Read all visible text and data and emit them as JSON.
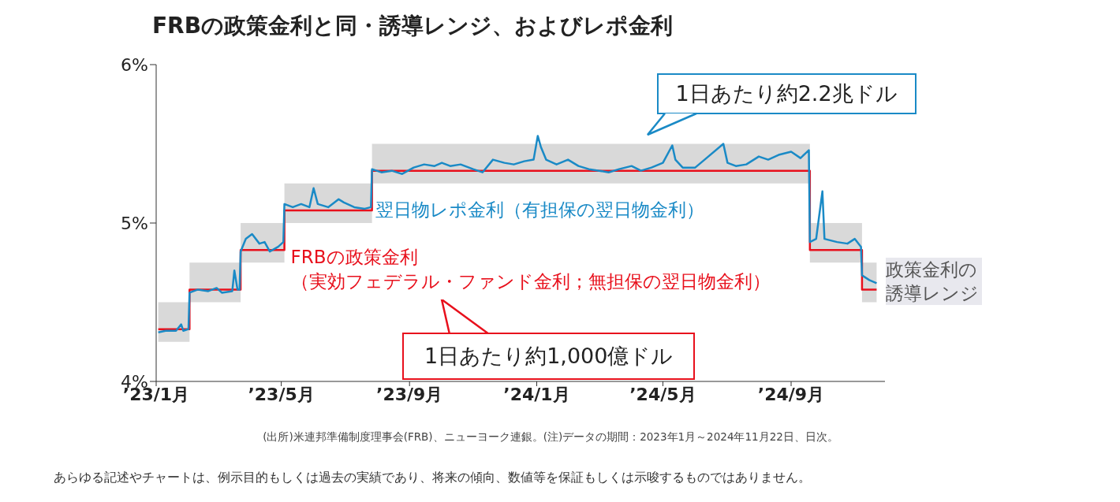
{
  "chart_data": {
    "type": "line",
    "title": "FRBの政策金利と同・誘導レンジ、およびレポ金利",
    "xlim": [
      "2023-01-01",
      "2024-11-30"
    ],
    "xticks": [
      {
        "value": "2023-01-01",
        "label": "’23/1月"
      },
      {
        "value": "2023-05-01",
        "label": "’23/5月"
      },
      {
        "value": "2023-09-01",
        "label": "’23/9月"
      },
      {
        "value": "2024-01-01",
        "label": "’24/1月"
      },
      {
        "value": "2024-05-01",
        "label": "’24/5月"
      },
      {
        "value": "2024-09-01",
        "label": "’24/9月"
      }
    ],
    "ylim": [
      4,
      6
    ],
    "yticks": [
      {
        "value": 4,
        "label": "4%"
      },
      {
        "value": 5,
        "label": "5%"
      },
      {
        "value": 6,
        "label": "6%"
      }
    ],
    "grid": false,
    "legend": false,
    "marker": "none",
    "line_style": "solid",
    "series": [
      {
        "name": "FRBの政策金利（実効フェデラル・ファンド金利；無担保の翌日物金利）",
        "type": "step",
        "color": "#e8101c",
        "x": [
          "2023-01-03",
          "2023-02-02",
          "2023-03-23",
          "2023-05-04",
          "2023-07-27",
          "2024-09-19",
          "2024-11-08",
          "2024-11-22"
        ],
        "values": [
          4.33,
          4.58,
          4.83,
          5.08,
          5.33,
          4.83,
          4.58,
          4.58
        ],
        "lower": [
          4.25,
          4.5,
          4.75,
          5.0,
          5.25,
          4.75,
          4.5,
          4.5
        ],
        "upper": [
          4.5,
          4.75,
          5.0,
          5.25,
          5.5,
          5.0,
          4.75,
          4.75
        ]
      },
      {
        "name": "翌日物レポ金利（有担保の翌日物金利）",
        "color": "#1a8ac6",
        "x": [
          "2023-01-03",
          "2023-01-10",
          "2023-01-20",
          "2023-01-25",
          "2023-01-27",
          "2023-02-01",
          "2023-02-02",
          "2023-02-10",
          "2023-02-20",
          "2023-02-28",
          "2023-03-05",
          "2023-03-15",
          "2023-03-17",
          "2023-03-20",
          "2023-03-22",
          "2023-03-23",
          "2023-03-28",
          "2023-04-03",
          "2023-04-10",
          "2023-04-15",
          "2023-04-20",
          "2023-04-28",
          "2023-05-03",
          "2023-05-04",
          "2023-05-12",
          "2023-05-20",
          "2023-05-28",
          "2023-06-01",
          "2023-06-05",
          "2023-06-15",
          "2023-06-25",
          "2023-06-30",
          "2023-07-10",
          "2023-07-20",
          "2023-07-26",
          "2023-07-27",
          "2023-08-05",
          "2023-08-15",
          "2023-08-25",
          "2023-09-05",
          "2023-09-15",
          "2023-09-25",
          "2023-10-02",
          "2023-10-10",
          "2023-10-20",
          "2023-11-01",
          "2023-11-10",
          "2023-11-20",
          "2023-12-01",
          "2023-12-10",
          "2023-12-20",
          "2023-12-29",
          "2024-01-02",
          "2024-01-05",
          "2024-01-10",
          "2024-01-20",
          "2024-01-31",
          "2024-02-10",
          "2024-02-20",
          "2024-03-01",
          "2024-03-10",
          "2024-03-20",
          "2024-04-01",
          "2024-04-10",
          "2024-04-20",
          "2024-05-01",
          "2024-05-10",
          "2024-05-13",
          "2024-05-20",
          "2024-06-01",
          "2024-06-10",
          "2024-06-28",
          "2024-07-02",
          "2024-07-10",
          "2024-07-20",
          "2024-08-01",
          "2024-08-10",
          "2024-08-20",
          "2024-09-01",
          "2024-09-10",
          "2024-09-18",
          "2024-09-19",
          "2024-09-25",
          "2024-10-01",
          "2024-10-03",
          "2024-10-15",
          "2024-10-25",
          "2024-11-01",
          "2024-11-07",
          "2024-11-08",
          "2024-11-15",
          "2024-11-22"
        ],
        "values": [
          4.31,
          4.32,
          4.32,
          4.36,
          4.32,
          4.33,
          4.56,
          4.58,
          4.57,
          4.59,
          4.56,
          4.57,
          4.7,
          4.58,
          4.58,
          4.82,
          4.9,
          4.93,
          4.87,
          4.88,
          4.82,
          4.85,
          4.88,
          5.12,
          5.1,
          5.12,
          5.1,
          5.22,
          5.12,
          5.1,
          5.15,
          5.13,
          5.1,
          5.09,
          5.1,
          5.34,
          5.32,
          5.33,
          5.31,
          5.35,
          5.37,
          5.36,
          5.38,
          5.36,
          5.37,
          5.34,
          5.32,
          5.4,
          5.38,
          5.37,
          5.39,
          5.4,
          5.55,
          5.48,
          5.4,
          5.37,
          5.4,
          5.36,
          5.34,
          5.33,
          5.32,
          5.34,
          5.36,
          5.33,
          5.35,
          5.38,
          5.49,
          5.4,
          5.35,
          5.35,
          5.4,
          5.5,
          5.38,
          5.36,
          5.37,
          5.42,
          5.4,
          5.43,
          5.45,
          5.41,
          5.46,
          4.88,
          4.9,
          5.2,
          4.9,
          4.88,
          4.87,
          4.9,
          4.85,
          4.67,
          4.64,
          4.62
        ]
      }
    ],
    "annotations": [
      "1日あたり約2.2兆ドル",
      "1日あたり約1,000億ドル",
      "政策金利の誘導レンジ",
      "(出所)米連邦準備制度理事会(FRB)、ニューヨーク連銀。(注)データの期間：2023年1月～2024年11月22日、日次。",
      "あらゆる記述やチャートは、例示目的もしくは過去の実績であり、将来の傾向、数値等を保証もしくは示唆するものではありません。"
    ]
  }
}
